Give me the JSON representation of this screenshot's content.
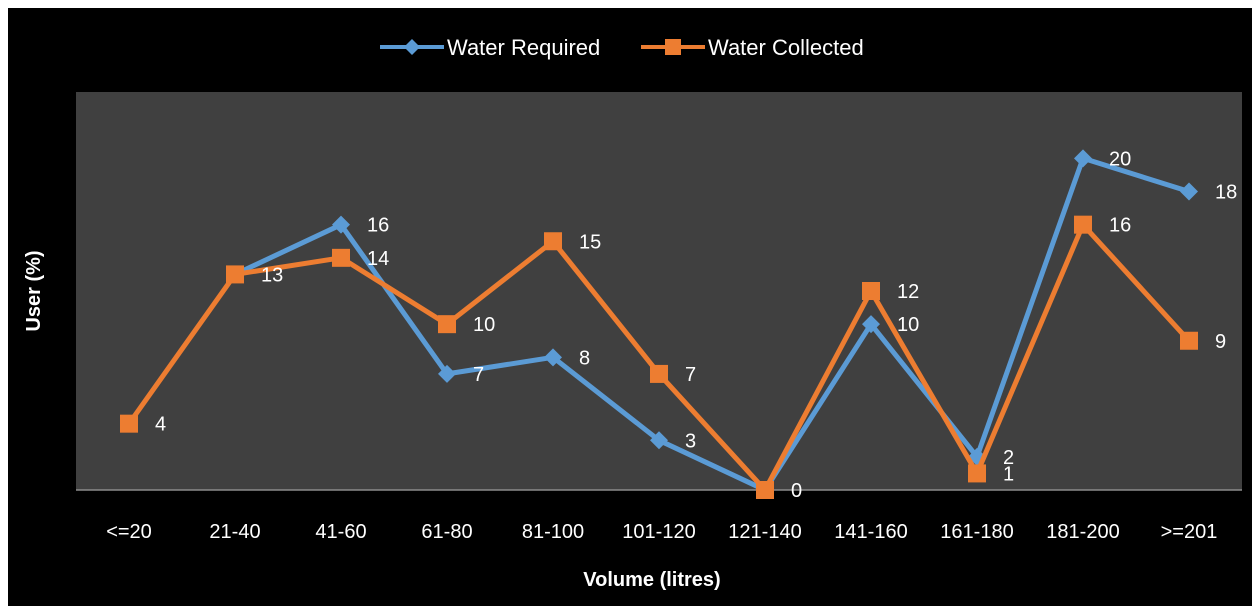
{
  "chart_data": {
    "type": "line",
    "title": "",
    "xlabel": "Volume  (litres)",
    "ylabel": "User (%)",
    "categories": [
      "<=20",
      "21-40",
      "41-60",
      "61-80",
      "81-100",
      "101-120",
      "121-140",
      "141-160",
      "161-180",
      "181-200",
      ">=201"
    ],
    "ylim": [
      0,
      24
    ],
    "grid": false,
    "legend_position": "top",
    "plot_background": "#404040",
    "figure_background": "#000000",
    "series": [
      {
        "name": "Water Required",
        "color": "#5B9BD5",
        "marker": "diamond",
        "values": [
          null,
          13,
          16,
          7,
          8,
          3,
          0,
          10,
          2,
          20,
          18
        ],
        "labels": [
          "",
          "",
          "16",
          "7",
          "8",
          "3",
          "",
          "10",
          "2",
          "20",
          "18"
        ]
      },
      {
        "name": "Water Collected",
        "color": "#ED7D31",
        "marker": "square",
        "values": [
          4,
          13,
          14,
          10,
          15,
          7,
          0,
          12,
          1,
          16,
          9
        ],
        "labels": [
          "4",
          "13",
          "14",
          "10",
          "15",
          "7",
          "0",
          "12",
          "1",
          "16",
          "9"
        ]
      }
    ]
  }
}
